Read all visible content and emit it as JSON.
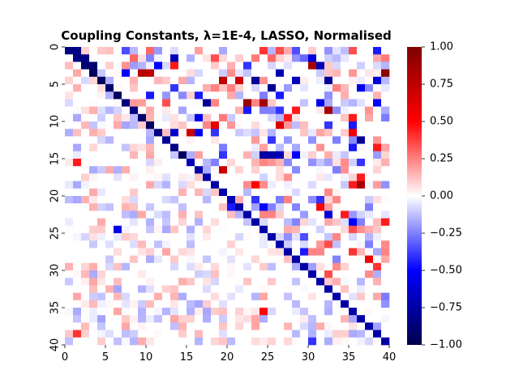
{
  "chart_data": {
    "type": "heatmap",
    "title": "Coupling Constants, λ=1E-4, LASSO, Normalised",
    "xlabel": "",
    "ylabel": "",
    "n_rows": 40,
    "n_cols": 40,
    "x_ticks": [
      "0",
      "5",
      "10",
      "15",
      "20",
      "25",
      "30",
      "35",
      "40"
    ],
    "x_tick_values": [
      0,
      5,
      10,
      15,
      20,
      25,
      30,
      35,
      40
    ],
    "y_ticks": [
      "0",
      "5",
      "10",
      "15",
      "20",
      "25",
      "30",
      "35",
      "40"
    ],
    "y_tick_values": [
      0,
      5,
      10,
      15,
      20,
      25,
      30,
      35,
      40
    ],
    "colorbar": {
      "vmin": -1.0,
      "vmax": 1.0,
      "ticks": [
        "1.00",
        "0.75",
        "0.50",
        "0.25",
        "0.00",
        "−0.25",
        "−0.50",
        "−0.75",
        "−1.00"
      ],
      "tick_values": [
        1.0,
        0.75,
        0.5,
        0.25,
        0.0,
        -0.25,
        -0.5,
        -0.75,
        -1.0
      ],
      "colormap": "seismic",
      "colors": [
        "#00004c",
        "#0000ff",
        "#ffffff",
        "#ff0000",
        "#800000"
      ]
    },
    "diagonal": [
      -0.85,
      -0.85,
      -0.9,
      -0.95,
      -0.95,
      -0.9,
      -0.95,
      -0.85,
      -0.85,
      -0.9,
      -0.95,
      -0.85,
      -0.8,
      -0.85,
      -0.95,
      -0.7,
      -0.75,
      -0.75,
      -0.75,
      -0.75,
      -0.7,
      -0.75,
      -0.75,
      -0.75,
      -0.75,
      -0.75,
      -0.75,
      -0.75,
      -0.75,
      -0.75,
      -0.75,
      -0.75,
      -0.75,
      -0.75,
      -0.75,
      -0.75,
      -0.75,
      -0.75,
      -0.75,
      -0.75
    ],
    "strong_cells": [
      {
        "row": 0,
        "col": 1,
        "value": -0.85
      },
      {
        "row": 0,
        "col": 7,
        "value": -0.35
      },
      {
        "row": 0,
        "col": 10,
        "value": 0.3
      },
      {
        "row": 0,
        "col": 24,
        "value": 0.4
      },
      {
        "row": 0,
        "col": 26,
        "value": 0.35
      },
      {
        "row": 0,
        "col": 28,
        "value": -0.35
      },
      {
        "row": 0,
        "col": 35,
        "value": 0.35
      },
      {
        "row": 0,
        "col": 38,
        "value": -0.45
      },
      {
        "row": 1,
        "col": 2,
        "value": -0.85
      },
      {
        "row": 1,
        "col": 8,
        "value": 0.3
      },
      {
        "row": 1,
        "col": 13,
        "value": -0.7
      },
      {
        "row": 1,
        "col": 18,
        "value": 0.35
      },
      {
        "row": 1,
        "col": 25,
        "value": 0.3
      },
      {
        "row": 1,
        "col": 29,
        "value": -0.3
      },
      {
        "row": 1,
        "col": 30,
        "value": -0.6
      },
      {
        "row": 2,
        "col": 3,
        "value": -0.9
      },
      {
        "row": 2,
        "col": 11,
        "value": -0.5
      },
      {
        "row": 2,
        "col": 13,
        "value": 0.45
      },
      {
        "row": 2,
        "col": 22,
        "value": -0.4
      },
      {
        "row": 2,
        "col": 30,
        "value": 0.85
      },
      {
        "row": 2,
        "col": 31,
        "value": -0.7
      },
      {
        "row": 3,
        "col": 7,
        "value": -0.5
      },
      {
        "row": 3,
        "col": 9,
        "value": 0.8
      },
      {
        "row": 3,
        "col": 10,
        "value": 0.75
      },
      {
        "row": 3,
        "col": 26,
        "value": -0.7
      },
      {
        "row": 3,
        "col": 39,
        "value": 0.95
      },
      {
        "row": 4,
        "col": 19,
        "value": 0.75
      },
      {
        "row": 4,
        "col": 21,
        "value": 0.7
      },
      {
        "row": 4,
        "col": 23,
        "value": -0.8
      },
      {
        "row": 4,
        "col": 28,
        "value": -0.7
      },
      {
        "row": 4,
        "col": 32,
        "value": -0.8
      },
      {
        "row": 4,
        "col": 38,
        "value": -0.6
      },
      {
        "row": 5,
        "col": 13,
        "value": -0.4
      },
      {
        "row": 5,
        "col": 25,
        "value": -0.8
      },
      {
        "row": 5,
        "col": 36,
        "value": -0.55
      },
      {
        "row": 6,
        "col": 10,
        "value": -0.45
      },
      {
        "row": 6,
        "col": 16,
        "value": -0.45
      },
      {
        "row": 6,
        "col": 26,
        "value": -0.45
      },
      {
        "row": 7,
        "col": 12,
        "value": 0.35
      },
      {
        "row": 7,
        "col": 17,
        "value": -0.8
      },
      {
        "row": 7,
        "col": 22,
        "value": 0.9
      },
      {
        "row": 7,
        "col": 24,
        "value": 0.85
      },
      {
        "row": 7,
        "col": 31,
        "value": -0.55
      },
      {
        "row": 7,
        "col": 38,
        "value": -0.5
      },
      {
        "row": 8,
        "col": 22,
        "value": -0.45
      },
      {
        "row": 8,
        "col": 26,
        "value": -0.4
      },
      {
        "row": 8,
        "col": 28,
        "value": 0.45
      },
      {
        "row": 8,
        "col": 32,
        "value": 0.85
      },
      {
        "row": 9,
        "col": 16,
        "value": -0.55
      },
      {
        "row": 9,
        "col": 27,
        "value": 0.45
      },
      {
        "row": 9,
        "col": 35,
        "value": 0.45
      },
      {
        "row": 10,
        "col": 18,
        "value": 0.6
      },
      {
        "row": 10,
        "col": 26,
        "value": 0.65
      },
      {
        "row": 10,
        "col": 32,
        "value": -0.4
      },
      {
        "row": 10,
        "col": 35,
        "value": -0.45
      },
      {
        "row": 11,
        "col": 13,
        "value": -0.65
      },
      {
        "row": 11,
        "col": 15,
        "value": 0.7
      },
      {
        "row": 11,
        "col": 16,
        "value": -0.55
      },
      {
        "row": 11,
        "col": 18,
        "value": -0.4
      },
      {
        "row": 11,
        "col": 35,
        "value": 0.55
      },
      {
        "row": 12,
        "col": 25,
        "value": -0.4
      },
      {
        "row": 12,
        "col": 36,
        "value": -0.8
      },
      {
        "row": 13,
        "col": 35,
        "value": -0.45
      },
      {
        "row": 13,
        "col": 38,
        "value": 0.45
      },
      {
        "row": 14,
        "col": 19,
        "value": -0.4
      },
      {
        "row": 14,
        "col": 24,
        "value": -0.75
      },
      {
        "row": 14,
        "col": 25,
        "value": -0.75
      },
      {
        "row": 14,
        "col": 26,
        "value": -0.7
      },
      {
        "row": 14,
        "col": 28,
        "value": -0.5
      },
      {
        "row": 15,
        "col": 1,
        "value": 0.45
      },
      {
        "row": 15,
        "col": 36,
        "value": -0.4
      },
      {
        "row": 16,
        "col": 19,
        "value": 0.7
      },
      {
        "row": 17,
        "col": 36,
        "value": 0.45
      },
      {
        "row": 18,
        "col": 23,
        "value": 0.5
      },
      {
        "row": 18,
        "col": 35,
        "value": 0.45
      },
      {
        "row": 18,
        "col": 36,
        "value": 0.85
      },
      {
        "row": 20,
        "col": 23,
        "value": -0.4
      },
      {
        "row": 20,
        "col": 31,
        "value": -0.4
      },
      {
        "row": 21,
        "col": 20,
        "value": -0.45
      },
      {
        "row": 21,
        "col": 24,
        "value": -0.5
      },
      {
        "row": 21,
        "col": 31,
        "value": 0.5
      },
      {
        "row": 22,
        "col": 32,
        "value": -0.6
      },
      {
        "row": 22,
        "col": 34,
        "value": 0.45
      },
      {
        "row": 23,
        "col": 35,
        "value": -0.5
      },
      {
        "row": 23,
        "col": 39,
        "value": 0.45
      },
      {
        "row": 24,
        "col": 6,
        "value": -0.55
      },
      {
        "row": 24,
        "col": 35,
        "value": 0.35
      },
      {
        "row": 25,
        "col": 29,
        "value": -0.35
      },
      {
        "row": 26,
        "col": 32,
        "value": 0.35
      },
      {
        "row": 27,
        "col": 29,
        "value": -0.45
      },
      {
        "row": 27,
        "col": 35,
        "value": 0.4
      },
      {
        "row": 28,
        "col": 37,
        "value": 0.55
      },
      {
        "row": 29,
        "col": 38,
        "value": 0.4
      },
      {
        "row": 30,
        "col": 32,
        "value": 0.35
      },
      {
        "row": 33,
        "col": 33,
        "value": -0.75
      },
      {
        "row": 35,
        "col": 24,
        "value": 0.5
      },
      {
        "row": 38,
        "col": 1,
        "value": 0.4
      },
      {
        "row": 39,
        "col": 30,
        "value": -0.4
      }
    ],
    "background_noise_amplitude": 0.2
  }
}
